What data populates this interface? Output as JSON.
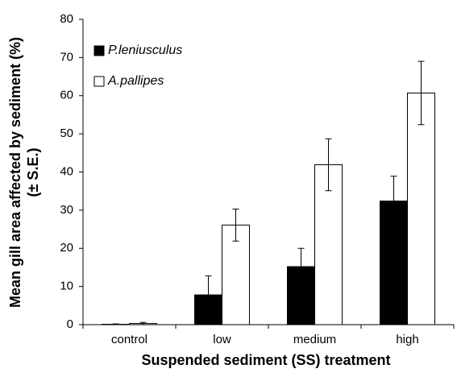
{
  "chart_data": {
    "type": "bar",
    "xlabel": "Suspended sediment (SS) treatment",
    "ylabel": [
      "Mean  gill area affected by sediment (%)",
      "(± S.E.)"
    ],
    "categories": [
      "control",
      "low",
      "medium",
      "high"
    ],
    "series": [
      {
        "name": "P.leniusculus",
        "color": "#000000",
        "values": [
          0.1,
          7.8,
          15.2,
          32.4
        ],
        "errors": [
          0.1,
          5.0,
          4.8,
          6.5
        ]
      },
      {
        "name": "A.pallipes",
        "color": "#ffffff",
        "values": [
          0.3,
          26.1,
          41.9,
          60.7
        ],
        "errors": [
          0.3,
          4.2,
          6.8,
          8.3
        ]
      }
    ],
    "ylim": [
      0,
      80
    ],
    "yticks": [
      0,
      10,
      20,
      30,
      40,
      50,
      60,
      70,
      80
    ],
    "grid": false,
    "legend": "upper left"
  }
}
